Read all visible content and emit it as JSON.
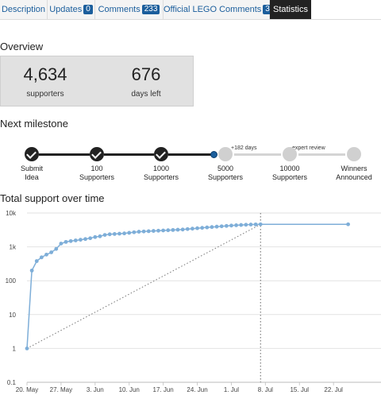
{
  "tabs": [
    {
      "label": "Description",
      "badge": null
    },
    {
      "label": "Updates",
      "badge": "0"
    },
    {
      "label": "Comments",
      "badge": "233"
    },
    {
      "label": "Official LEGO Comments",
      "badge": "3"
    },
    {
      "label": "Statistics",
      "badge": null
    }
  ],
  "active_tab": "Statistics",
  "overview": {
    "heading": "Overview",
    "supporters_value": "4,634",
    "supporters_label": "supporters",
    "days_value": "676",
    "days_label": "days left"
  },
  "milestone": {
    "heading": "Next milestone",
    "steps": [
      {
        "label_line1": "Submit",
        "label_line2": "Idea",
        "done": true
      },
      {
        "label_line1": "100",
        "label_line2": "Supporters",
        "done": true
      },
      {
        "label_line1": "1000",
        "label_line2": "Supporters",
        "done": true
      },
      {
        "label_line1": "5000",
        "label_line2": "Supporters",
        "done": false
      },
      {
        "label_line1": "10000",
        "label_line2": "Supporters",
        "done": false
      },
      {
        "label_line1": "Winners",
        "label_line2": "Announced",
        "done": false
      }
    ],
    "note_days": "+182 days",
    "note_review": "expert review",
    "progress_to_next": 0.9,
    "colors": {
      "done": "#222222",
      "pending": "#d0d0d0",
      "current": "#1b5e9c"
    }
  },
  "chart": {
    "heading": "Total support over time"
  },
  "chart_data": {
    "type": "line",
    "y_scale": "log",
    "ylim": [
      0.1,
      10000
    ],
    "y_tick_labels": [
      "10k",
      "1k",
      "100",
      "10",
      "1",
      "0.1"
    ],
    "y_tick_values": [
      10000,
      1000,
      100,
      10,
      1,
      0.1
    ],
    "x_tick_labels": [
      "20. May",
      "27. May",
      "3. Jun",
      "10. Jun",
      "17. Jun",
      "24. Jun",
      "1. Jul",
      "8. Jul",
      "15. Jul",
      "22. Jul"
    ],
    "x_tick_dates": [
      "2014-05-20",
      "2014-05-27",
      "2014-06-03",
      "2014-06-10",
      "2014-06-17",
      "2014-06-24",
      "2014-07-01",
      "2014-07-08",
      "2014-07-15",
      "2014-07-22"
    ],
    "grid": true,
    "series": [
      {
        "color": "#7eaed8",
        "points": [
          [
            "2014-05-20",
            1
          ],
          [
            "2014-05-21",
            200
          ],
          [
            "2014-05-22",
            380
          ],
          [
            "2014-05-23",
            490
          ],
          [
            "2014-05-24",
            590
          ],
          [
            "2014-05-25",
            690
          ],
          [
            "2014-05-26",
            870
          ],
          [
            "2014-05-27",
            1250
          ],
          [
            "2014-05-28",
            1400
          ],
          [
            "2014-05-29",
            1480
          ],
          [
            "2014-05-30",
            1550
          ],
          [
            "2014-05-31",
            1620
          ],
          [
            "2014-06-01",
            1700
          ],
          [
            "2014-06-02",
            1800
          ],
          [
            "2014-06-03",
            1950
          ],
          [
            "2014-06-04",
            2050
          ],
          [
            "2014-06-05",
            2250
          ],
          [
            "2014-06-06",
            2350
          ],
          [
            "2014-06-07",
            2400
          ],
          [
            "2014-06-08",
            2450
          ],
          [
            "2014-06-09",
            2500
          ],
          [
            "2014-06-10",
            2600
          ],
          [
            "2014-06-11",
            2700
          ],
          [
            "2014-06-12",
            2800
          ],
          [
            "2014-06-13",
            2850
          ],
          [
            "2014-06-14",
            2900
          ],
          [
            "2014-06-15",
            2950
          ],
          [
            "2014-06-16",
            3000
          ],
          [
            "2014-06-17",
            3050
          ],
          [
            "2014-06-18",
            3100
          ],
          [
            "2014-06-19",
            3150
          ],
          [
            "2014-06-20",
            3200
          ],
          [
            "2014-06-21",
            3250
          ],
          [
            "2014-06-22",
            3350
          ],
          [
            "2014-06-23",
            3450
          ],
          [
            "2014-06-24",
            3550
          ],
          [
            "2014-06-25",
            3650
          ],
          [
            "2014-06-26",
            3750
          ],
          [
            "2014-06-27",
            3850
          ],
          [
            "2014-06-28",
            3950
          ],
          [
            "2014-06-29",
            4050
          ],
          [
            "2014-06-30",
            4150
          ],
          [
            "2014-07-01",
            4250
          ],
          [
            "2014-07-02",
            4350
          ],
          [
            "2014-07-03",
            4430
          ],
          [
            "2014-07-04",
            4500
          ],
          [
            "2014-07-05",
            4560
          ],
          [
            "2014-07-06",
            4600
          ],
          [
            "2014-07-07",
            4634
          ]
        ]
      }
    ],
    "projection": {
      "from": [
        "2014-05-20",
        1
      ],
      "to": [
        "2014-07-07",
        4634
      ],
      "extend_to": "2014-07-25",
      "style": "dotted"
    },
    "current_marker": {
      "date": "2014-07-07",
      "style": "dotted-vertical"
    },
    "end_point": [
      "2014-07-25",
      4634
    ]
  }
}
